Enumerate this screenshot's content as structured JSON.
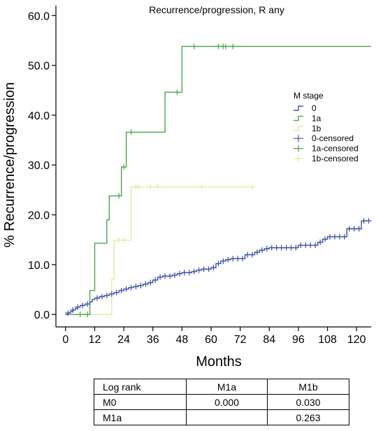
{
  "chart_data": {
    "type": "line",
    "title": "Recurrence/progression, R any",
    "xlabel": "Months",
    "ylabel": "% Recurrence/progression",
    "xlim": [
      -4,
      126
    ],
    "ylim": [
      -2.5,
      62
    ],
    "xticks": [
      0,
      12,
      24,
      36,
      48,
      60,
      72,
      84,
      96,
      108,
      120
    ],
    "yticks": [
      0,
      10,
      20,
      30,
      40,
      50,
      60
    ],
    "ytick_labels": [
      "0.0",
      "10.0",
      "20.0",
      "30.0",
      "40.0",
      "50.0",
      "60.0"
    ],
    "legend": {
      "title": "M stage",
      "position": "right",
      "entries": [
        "0",
        "1a",
        "1b",
        "0-censored",
        "1a-censored",
        "1b-censored"
      ]
    },
    "series": [
      {
        "name": "0",
        "color": "#3a50a5",
        "steps": [
          [
            0,
            0
          ],
          [
            1,
            0.3
          ],
          [
            2,
            0.6
          ],
          [
            3,
            0.9
          ],
          [
            4,
            1.2
          ],
          [
            5,
            1.5
          ],
          [
            6,
            1.8
          ],
          [
            8,
            2.1
          ],
          [
            10,
            2.5
          ],
          [
            11,
            3.0
          ],
          [
            12,
            3.3
          ],
          [
            14,
            3.6
          ],
          [
            16,
            3.8
          ],
          [
            18,
            4.1
          ],
          [
            20,
            4.4
          ],
          [
            22,
            4.8
          ],
          [
            24,
            5.1
          ],
          [
            26,
            5.4
          ],
          [
            28,
            5.6
          ],
          [
            30,
            5.8
          ],
          [
            32,
            6.1
          ],
          [
            34,
            6.4
          ],
          [
            36,
            6.9
          ],
          [
            38,
            7.5
          ],
          [
            40,
            7.7
          ],
          [
            44,
            7.9
          ],
          [
            46,
            8.2
          ],
          [
            48,
            8.4
          ],
          [
            52,
            8.6
          ],
          [
            54,
            8.9
          ],
          [
            56,
            9.1
          ],
          [
            60,
            9.4
          ],
          [
            62,
            10.2
          ],
          [
            64,
            10.7
          ],
          [
            66,
            11.0
          ],
          [
            68,
            11.2
          ],
          [
            74,
            12.0
          ],
          [
            78,
            12.5
          ],
          [
            80,
            12.9
          ],
          [
            82,
            13.2
          ],
          [
            84,
            13.4
          ],
          [
            96,
            13.9
          ],
          [
            104,
            14.5
          ],
          [
            106,
            15.1
          ],
          [
            108,
            15.6
          ],
          [
            116,
            17.2
          ],
          [
            122,
            18.8
          ]
        ],
        "end": 125,
        "censored": [
          [
            1,
            0.3
          ],
          [
            3,
            0.9
          ],
          [
            5,
            1.5
          ],
          [
            7,
            1.8
          ],
          [
            9,
            2.1
          ],
          [
            13,
            3.3
          ],
          [
            15,
            3.6
          ],
          [
            17,
            3.8
          ],
          [
            19,
            4.1
          ],
          [
            21,
            4.4
          ],
          [
            23,
            4.8
          ],
          [
            25,
            5.1
          ],
          [
            27,
            5.4
          ],
          [
            29,
            5.6
          ],
          [
            31,
            5.8
          ],
          [
            33,
            6.1
          ],
          [
            35,
            6.4
          ],
          [
            37,
            6.9
          ],
          [
            39,
            7.5
          ],
          [
            41,
            7.7
          ],
          [
            43,
            7.7
          ],
          [
            45,
            7.9
          ],
          [
            47,
            8.2
          ],
          [
            49,
            8.4
          ],
          [
            51,
            8.4
          ],
          [
            53,
            8.6
          ],
          [
            55,
            8.9
          ],
          [
            57,
            9.1
          ],
          [
            59,
            9.1
          ],
          [
            61,
            9.4
          ],
          [
            63,
            10.2
          ],
          [
            65,
            10.7
          ],
          [
            67,
            11.0
          ],
          [
            69,
            11.2
          ],
          [
            71,
            11.2
          ],
          [
            73,
            11.2
          ],
          [
            75,
            12.0
          ],
          [
            77,
            12.0
          ],
          [
            79,
            12.5
          ],
          [
            81,
            12.9
          ],
          [
            83,
            13.2
          ],
          [
            85,
            13.4
          ],
          [
            87,
            13.4
          ],
          [
            89,
            13.4
          ],
          [
            91,
            13.4
          ],
          [
            93,
            13.4
          ],
          [
            95,
            13.4
          ],
          [
            97,
            13.9
          ],
          [
            99,
            13.9
          ],
          [
            101,
            13.9
          ],
          [
            103,
            13.9
          ],
          [
            105,
            14.5
          ],
          [
            107,
            15.1
          ],
          [
            109,
            15.6
          ],
          [
            111,
            15.6
          ],
          [
            113,
            15.6
          ],
          [
            115,
            15.6
          ],
          [
            117,
            17.2
          ],
          [
            119,
            17.2
          ],
          [
            121,
            17.2
          ],
          [
            123,
            18.8
          ],
          [
            125,
            18.8
          ]
        ]
      },
      {
        "name": "1a",
        "color": "#4aa64a",
        "steps": [
          [
            0,
            0
          ],
          [
            10,
            4.8
          ],
          [
            12,
            14.3
          ],
          [
            17,
            19.0
          ],
          [
            18,
            23.8
          ],
          [
            23,
            29.6
          ],
          [
            25,
            36.6
          ],
          [
            41,
            44.6
          ],
          [
            48,
            53.8
          ]
        ],
        "end": 126,
        "censored": [
          [
            6,
            0
          ],
          [
            9,
            0
          ],
          [
            22,
            23.8
          ],
          [
            24,
            29.6
          ],
          [
            27,
            36.6
          ],
          [
            46,
            44.6
          ],
          [
            53,
            53.8
          ],
          [
            63,
            53.8
          ],
          [
            65,
            53.8
          ],
          [
            66,
            53.8
          ],
          [
            69,
            53.8
          ]
        ]
      },
      {
        "name": "1b",
        "color": "#e6e8a0",
        "steps": [
          [
            0,
            0
          ],
          [
            19,
            7.1
          ],
          [
            20,
            14.9
          ],
          [
            27,
            25.6
          ]
        ],
        "end": 77,
        "censored": [
          [
            22,
            14.9
          ],
          [
            24,
            14.9
          ],
          [
            29,
            25.6
          ],
          [
            30,
            25.6
          ],
          [
            35,
            25.6
          ],
          [
            38,
            25.6
          ],
          [
            56,
            25.6
          ],
          [
            77,
            25.6
          ]
        ]
      }
    ],
    "table": {
      "headers": [
        "Log rank",
        "M1a",
        "M1b"
      ],
      "rows": [
        [
          "M0",
          "0.000",
          "0.030"
        ],
        [
          "M1a",
          "",
          "0.263"
        ]
      ]
    }
  }
}
